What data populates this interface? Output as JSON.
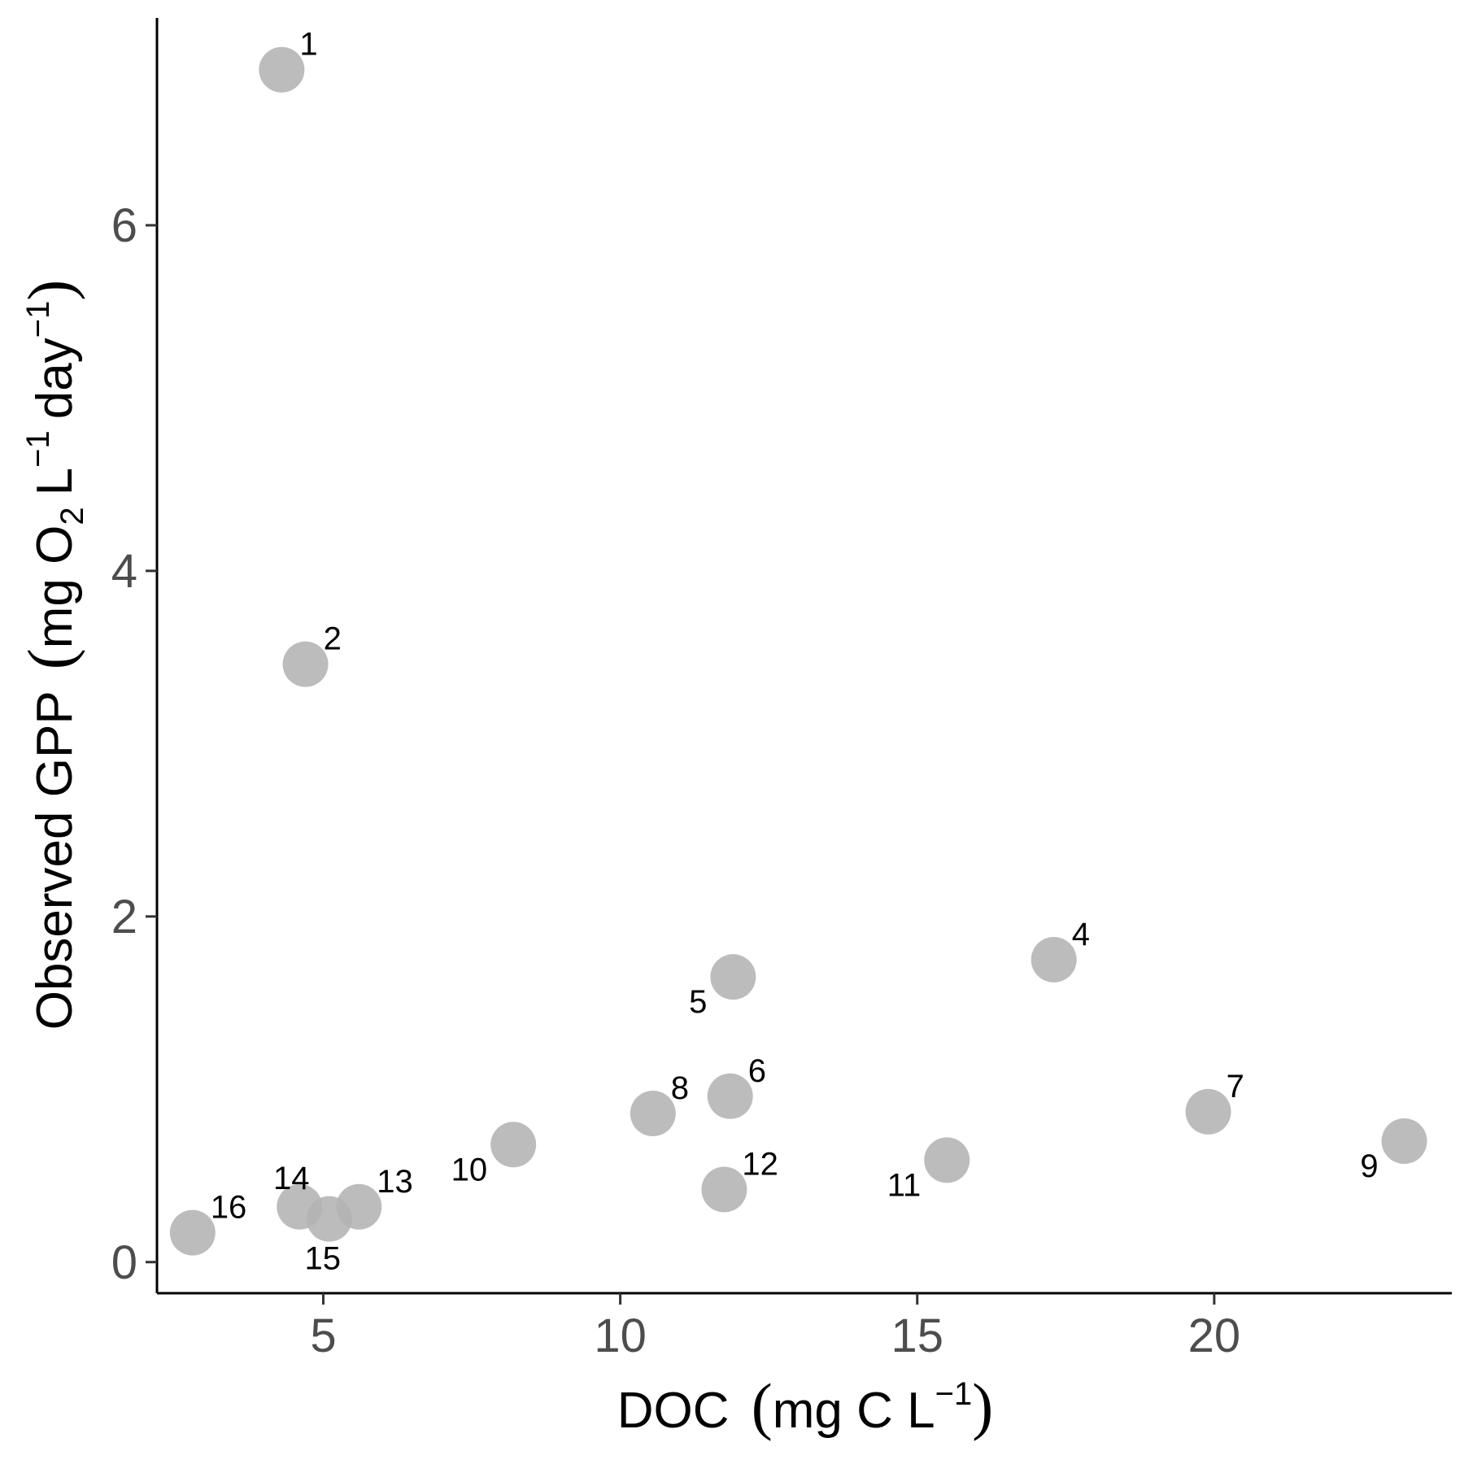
{
  "chart_data": {
    "type": "scatter",
    "title": "",
    "xlabel": {
      "main": "DOC",
      "unit_text": "mg C L",
      "unit_sup": "−1"
    },
    "ylabel": {
      "main": "Observed GPP",
      "mg": "mg O",
      "o2_sub": "2",
      "L": "L",
      "L_sup": "−1",
      "day": "day",
      "day_sup": "−1"
    },
    "xlim": [
      2.2,
      24.0
    ],
    "ylim": [
      -0.18,
      7.2
    ],
    "xticks": [
      5,
      10,
      15,
      20
    ],
    "yticks": [
      0,
      2,
      4,
      6
    ],
    "grid": false,
    "marker_color": "#b3b3b3",
    "points": [
      {
        "label": "1",
        "x": 4.3,
        "y": 6.9,
        "label_pos": "upper-right"
      },
      {
        "label": "2",
        "x": 4.7,
        "y": 3.46,
        "label_pos": "upper-right"
      },
      {
        "label": "4",
        "x": 17.3,
        "y": 1.75,
        "label_pos": "upper-right"
      },
      {
        "label": "5",
        "x": 11.9,
        "y": 1.65,
        "label_pos": "lower-left"
      },
      {
        "label": "6",
        "x": 11.85,
        "y": 0.96,
        "label_pos": "upper-right"
      },
      {
        "label": "7",
        "x": 19.9,
        "y": 0.87,
        "label_pos": "upper-right"
      },
      {
        "label": "8",
        "x": 10.55,
        "y": 0.86,
        "label_pos": "upper-right"
      },
      {
        "label": "9",
        "x": 23.2,
        "y": 0.7,
        "label_pos": "lower-left"
      },
      {
        "label": "10",
        "x": 8.2,
        "y": 0.68,
        "label_pos": "lower-left"
      },
      {
        "label": "11",
        "x": 15.5,
        "y": 0.59,
        "label_pos": "lower-left"
      },
      {
        "label": "12",
        "x": 11.75,
        "y": 0.42,
        "label_pos": "upper-right"
      },
      {
        "label": "13",
        "x": 5.6,
        "y": 0.32,
        "label_pos": "upper-right"
      },
      {
        "label": "14",
        "x": 4.6,
        "y": 0.32,
        "label_pos": "upper-left"
      },
      {
        "label": "15",
        "x": 5.1,
        "y": 0.25,
        "label_pos": "below"
      },
      {
        "label": "16",
        "x": 2.8,
        "y": 0.17,
        "label_pos": "upper-right"
      }
    ]
  }
}
